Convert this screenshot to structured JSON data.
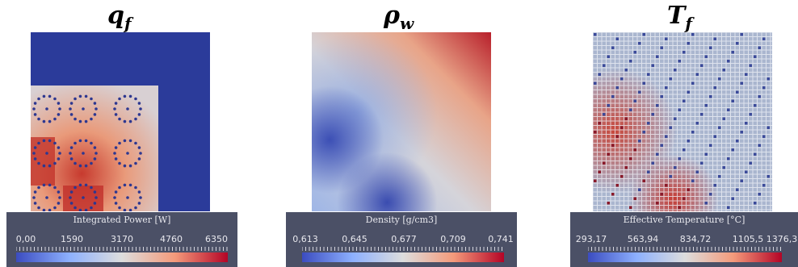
{
  "panels": [
    {
      "id": "qf",
      "title_main": "q",
      "title_sub": "f",
      "legend": {
        "title": "Integrated Power [W]",
        "ticks": [
          "0,00",
          "1590",
          "3170",
          "4760",
          "6350"
        ]
      },
      "colors": {
        "low": "#3b4cc0",
        "mid": "#dddddd",
        "high": "#b40426",
        "background": "#2b3b9a"
      }
    },
    {
      "id": "rhow",
      "title_main": "ρ",
      "title_sub": "w",
      "legend": {
        "title": "Density [g/cm3]",
        "ticks": [
          "0,613",
          "0,645",
          "0,677",
          "0,709",
          "0,741"
        ]
      },
      "colors": {
        "low": "#3b4cc0",
        "mid": "#dddddd",
        "high": "#b40426"
      }
    },
    {
      "id": "tf",
      "title_main": "T",
      "title_sub": "f",
      "legend": {
        "title": "Effective Temperature [°C]",
        "ticks": [
          "293,17",
          "563,94",
          "834,72",
          "1105,5",
          "1376,3"
        ]
      },
      "colors": {
        "low": "#3b4cc0",
        "mid": "#dddddd",
        "high": "#b40426"
      }
    }
  ]
}
